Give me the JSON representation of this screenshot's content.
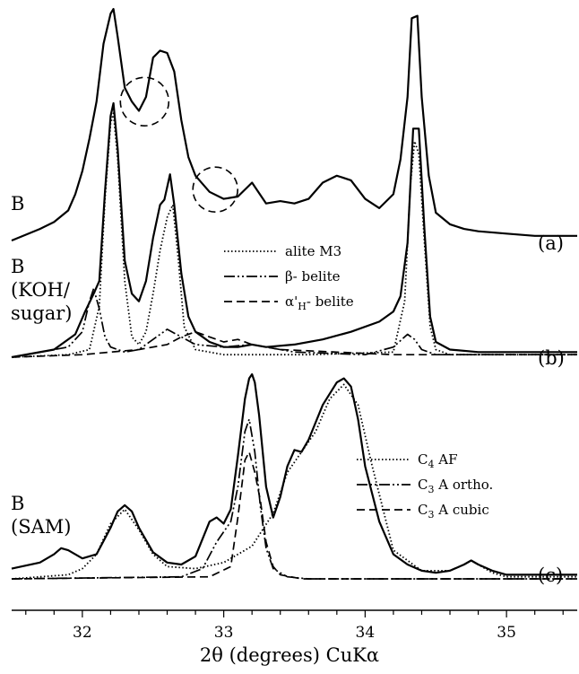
{
  "chart_data": {
    "type": "line",
    "xlabel": "2θ (degrees) CuKα",
    "xlim": [
      31.5,
      35.5
    ],
    "x_ticks": [
      32,
      33,
      34,
      35
    ],
    "panels": [
      {
        "id": "a",
        "tag": "(a)",
        "sample_label": [
          "B"
        ],
        "series": [
          {
            "style": "solid",
            "x": [
              31.5,
              31.7,
              31.8,
              31.9,
              31.95,
              32.0,
              32.05,
              32.1,
              32.15,
              32.2,
              32.22,
              32.25,
              32.3,
              32.35,
              32.4,
              32.45,
              32.5,
              32.55,
              32.6,
              32.65,
              32.7,
              32.75,
              32.8,
              32.9,
              33.0,
              33.1,
              33.2,
              33.3,
              33.4,
              33.5,
              33.6,
              33.7,
              33.8,
              33.85,
              33.9,
              34.0,
              34.1,
              34.2,
              34.25,
              34.3,
              34.33,
              34.37,
              34.4,
              34.45,
              34.5,
              34.6,
              34.7,
              34.8,
              35.0,
              35.2,
              35.5
            ],
            "y": [
              0,
              0.05,
              0.08,
              0.13,
              0.2,
              0.3,
              0.44,
              0.6,
              0.85,
              0.98,
              1.0,
              0.88,
              0.66,
              0.6,
              0.56,
              0.62,
              0.79,
              0.82,
              0.81,
              0.73,
              0.52,
              0.36,
              0.28,
              0.21,
              0.18,
              0.19,
              0.25,
              0.16,
              0.17,
              0.16,
              0.18,
              0.25,
              0.28,
              0.27,
              0.26,
              0.18,
              0.14,
              0.2,
              0.35,
              0.62,
              0.96,
              0.97,
              0.62,
              0.28,
              0.12,
              0.07,
              0.05,
              0.04,
              0.03,
              0.02,
              0.02
            ]
          }
        ],
        "annotations": [
          {
            "shape": "dashed-circle",
            "x": 32.44,
            "y": 0.6
          },
          {
            "shape": "dashed-circle",
            "x": 32.94,
            "y": 0.22
          }
        ]
      },
      {
        "id": "b",
        "tag": "(b)",
        "sample_label": [
          "B",
          "(KOH/",
          "sugar)"
        ],
        "legend": [
          "alite M3",
          "β- belite",
          "α'H- belite"
        ],
        "series": [
          {
            "style": "solid",
            "x": [
              31.5,
              31.8,
              31.95,
              32.02,
              32.08,
              32.12,
              32.16,
              32.2,
              32.22,
              32.25,
              32.3,
              32.35,
              32.4,
              32.45,
              32.5,
              32.55,
              32.58,
              32.62,
              32.65,
              32.7,
              32.75,
              32.8,
              32.9,
              33.0,
              33.1,
              33.2,
              33.3,
              33.5,
              33.7,
              33.9,
              34.1,
              34.2,
              34.25,
              34.3,
              34.34,
              34.38,
              34.42,
              34.46,
              34.5,
              34.6,
              34.8,
              35.0,
              35.2,
              35.5
            ],
            "y": [
              0,
              0.03,
              0.09,
              0.18,
              0.25,
              0.3,
              0.65,
              0.95,
              1.0,
              0.82,
              0.38,
              0.25,
              0.22,
              0.3,
              0.47,
              0.6,
              0.62,
              0.72,
              0.6,
              0.33,
              0.16,
              0.1,
              0.06,
              0.04,
              0.04,
              0.05,
              0.04,
              0.05,
              0.07,
              0.1,
              0.14,
              0.18,
              0.24,
              0.45,
              0.9,
              0.9,
              0.5,
              0.16,
              0.06,
              0.03,
              0.02,
              0.02,
              0.02,
              0.02
            ]
          },
          {
            "style": "dotted",
            "name": "alite M3",
            "x": [
              31.5,
              31.9,
              32.05,
              32.12,
              32.16,
              32.2,
              32.22,
              32.25,
              32.3,
              32.35,
              32.4,
              32.45,
              32.5,
              32.55,
              32.6,
              32.64,
              32.68,
              32.72,
              32.8,
              33.0,
              33.2,
              33.6,
              34.2,
              34.28,
              34.32,
              34.35,
              34.38,
              34.42,
              34.46,
              34.5,
              34.6,
              35.0,
              35.5
            ],
            "y": [
              0,
              0.01,
              0.03,
              0.2,
              0.62,
              0.92,
              0.96,
              0.78,
              0.3,
              0.08,
              0.05,
              0.1,
              0.25,
              0.42,
              0.55,
              0.6,
              0.38,
              0.12,
              0.03,
              0.01,
              0.01,
              0.01,
              0.02,
              0.22,
              0.68,
              0.85,
              0.8,
              0.45,
              0.12,
              0.03,
              0.01,
              0.01,
              0.01
            ]
          },
          {
            "style": "dashdotdot",
            "name": "β- belite",
            "x": [
              31.5,
              31.9,
              32.0,
              32.05,
              32.08,
              32.12,
              32.16,
              32.2,
              32.3,
              32.4,
              32.5,
              32.6,
              32.7,
              32.8,
              33.0,
              33.2,
              33.5,
              34.0,
              34.2,
              34.3,
              34.35,
              34.4,
              34.5,
              35.0,
              35.5
            ],
            "y": [
              0,
              0.04,
              0.1,
              0.22,
              0.27,
              0.19,
              0.08,
              0.04,
              0.02,
              0.03,
              0.07,
              0.11,
              0.08,
              0.05,
              0.04,
              0.05,
              0.02,
              0.01,
              0.04,
              0.09,
              0.07,
              0.03,
              0.01,
              0.01,
              0.01
            ]
          },
          {
            "style": "dashed",
            "name": "α'H- belite",
            "x": [
              31.5,
              32.0,
              32.2,
              32.4,
              32.6,
              32.7,
              32.8,
              32.9,
              33.0,
              33.1,
              33.2,
              33.4,
              33.8,
              34.2,
              34.5,
              35.0,
              35.5
            ],
            "y": [
              0,
              0.01,
              0.02,
              0.03,
              0.05,
              0.08,
              0.1,
              0.08,
              0.06,
              0.07,
              0.05,
              0.03,
              0.02,
              0.01,
              0.01,
              0.01,
              0.01
            ]
          }
        ]
      },
      {
        "id": "c",
        "tag": "(c)",
        "sample_label": [
          "B",
          "(SAM)"
        ],
        "legend": [
          "C4 AF",
          "C3 A ortho.",
          "C3 A cubic"
        ],
        "series": [
          {
            "style": "solid",
            "x": [
              31.5,
              31.7,
              31.8,
              31.85,
              31.9,
              32.0,
              32.1,
              32.2,
              32.25,
              32.3,
              32.35,
              32.4,
              32.5,
              32.6,
              32.7,
              32.8,
              32.9,
              32.95,
              33.0,
              33.05,
              33.1,
              33.15,
              33.18,
              33.2,
              33.22,
              33.25,
              33.3,
              33.35,
              33.4,
              33.45,
              33.5,
              33.55,
              33.6,
              33.7,
              33.8,
              33.85,
              33.9,
              33.95,
              34.0,
              34.1,
              34.2,
              34.3,
              34.4,
              34.5,
              34.6,
              34.7,
              34.75,
              34.8,
              34.9,
              35.0,
              35.2,
              35.5
            ],
            "y": [
              0.05,
              0.08,
              0.12,
              0.15,
              0.14,
              0.1,
              0.12,
              0.25,
              0.33,
              0.36,
              0.33,
              0.25,
              0.13,
              0.08,
              0.07,
              0.11,
              0.28,
              0.3,
              0.27,
              0.34,
              0.6,
              0.88,
              0.98,
              1.0,
              0.96,
              0.8,
              0.45,
              0.3,
              0.4,
              0.55,
              0.63,
              0.62,
              0.68,
              0.85,
              0.96,
              0.98,
              0.94,
              0.78,
              0.55,
              0.28,
              0.12,
              0.07,
              0.04,
              0.03,
              0.04,
              0.07,
              0.09,
              0.07,
              0.04,
              0.02,
              0.02,
              0.02
            ]
          },
          {
            "style": "dotted",
            "name": "C4 AF",
            "x": [
              31.5,
              31.9,
              32.0,
              32.1,
              32.2,
              32.3,
              32.4,
              32.5,
              32.6,
              32.8,
              33.0,
              33.2,
              33.35,
              33.45,
              33.55,
              33.65,
              33.75,
              33.85,
              33.95,
              34.05,
              34.2,
              34.4,
              34.6,
              34.7,
              34.75,
              34.8,
              34.9,
              35.0,
              35.5
            ],
            "y": [
              0,
              0.02,
              0.05,
              0.12,
              0.27,
              0.34,
              0.24,
              0.12,
              0.06,
              0.05,
              0.08,
              0.16,
              0.32,
              0.52,
              0.62,
              0.72,
              0.88,
              0.95,
              0.85,
              0.55,
              0.14,
              0.04,
              0.04,
              0.07,
              0.09,
              0.07,
              0.03,
              0.01,
              0.01
            ]
          },
          {
            "style": "dashdotdot",
            "name": "C3 A ortho.",
            "x": [
              31.5,
              32.7,
              32.85,
              32.95,
              33.05,
              33.1,
              33.15,
              33.18,
              33.22,
              33.26,
              33.3,
              33.35,
              33.45,
              33.6,
              35.5
            ],
            "y": [
              0,
              0.01,
              0.05,
              0.18,
              0.28,
              0.45,
              0.72,
              0.78,
              0.62,
              0.35,
              0.15,
              0.05,
              0.01,
              0.0,
              0.0
            ]
          },
          {
            "style": "dashed",
            "name": "C3 A cubic",
            "x": [
              31.5,
              32.9,
              33.05,
              33.1,
              33.15,
              33.18,
              33.22,
              33.26,
              33.3,
              33.35,
              33.4,
              33.55,
              35.5
            ],
            "y": [
              0,
              0.01,
              0.06,
              0.3,
              0.58,
              0.62,
              0.52,
              0.38,
              0.18,
              0.06,
              0.02,
              0.0,
              0.0
            ]
          }
        ]
      }
    ]
  }
}
